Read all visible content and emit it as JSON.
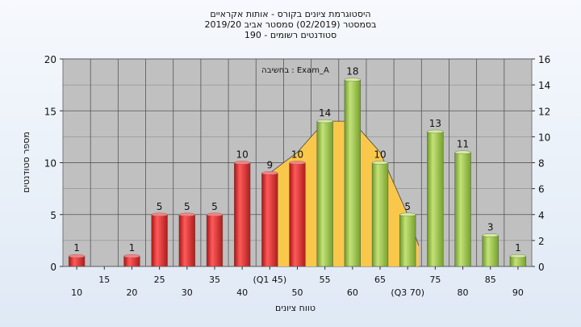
{
  "chart_data": {
    "type": "bar",
    "title_lines": [
      "היסטוגרמת ציונים בקורס - אותות אקראיים",
      "בסמסטר  (02/2019)  סמסטר אביב 2019/20",
      "סטודנטים רשומים - 190"
    ],
    "ylabel": "מספר סטודנטים",
    "xlabel": "טווח ציונים",
    "annotation": "בחשיבה : Exam_A",
    "ylim": [
      0,
      20
    ],
    "y_ticks": [
      "0",
      "5",
      "10",
      "15",
      "20"
    ],
    "y2lim": [
      0,
      16
    ],
    "y2_ticks": [
      "0",
      "2",
      "4",
      "6",
      "8",
      "10",
      "12",
      "14",
      "16"
    ],
    "grid": true,
    "categories": [
      10,
      15,
      20,
      25,
      30,
      35,
      40,
      45,
      50,
      55,
      60,
      65,
      70,
      75,
      80,
      85,
      90
    ],
    "values": [
      1,
      0,
      1,
      5,
      5,
      5,
      10,
      9,
      10,
      14,
      18,
      10,
      5,
      13,
      11,
      3,
      1
    ],
    "value_labels": [
      "1",
      "",
      "1",
      "5",
      "5",
      "5",
      "10",
      "9",
      "10",
      "14",
      "18",
      "10",
      "5",
      "13",
      "11",
      "3",
      "1"
    ],
    "x_tick_labels": [
      "10",
      "15",
      "20",
      "25",
      "30",
      "35",
      "40",
      "(Q1 45)",
      "50",
      "55",
      "60",
      "65",
      "(Q3 70)",
      "75",
      "80",
      "85",
      "90"
    ],
    "bar_colors": [
      "red",
      "red",
      "red",
      "red",
      "red",
      "red",
      "red",
      "red",
      "red",
      "green",
      "green",
      "green",
      "green",
      "green",
      "green",
      "green",
      "green"
    ],
    "colors": {
      "red": "#e23535",
      "green": "#9dc24a",
      "distribution": "#f9c84b",
      "plot_bg": "#c0c0c0",
      "grid": "#555555"
    },
    "distribution": {
      "x": [
        45,
        50,
        55,
        60,
        65,
        70,
        72
      ],
      "y": [
        9,
        11,
        14,
        14,
        11,
        5,
        2
      ]
    }
  }
}
